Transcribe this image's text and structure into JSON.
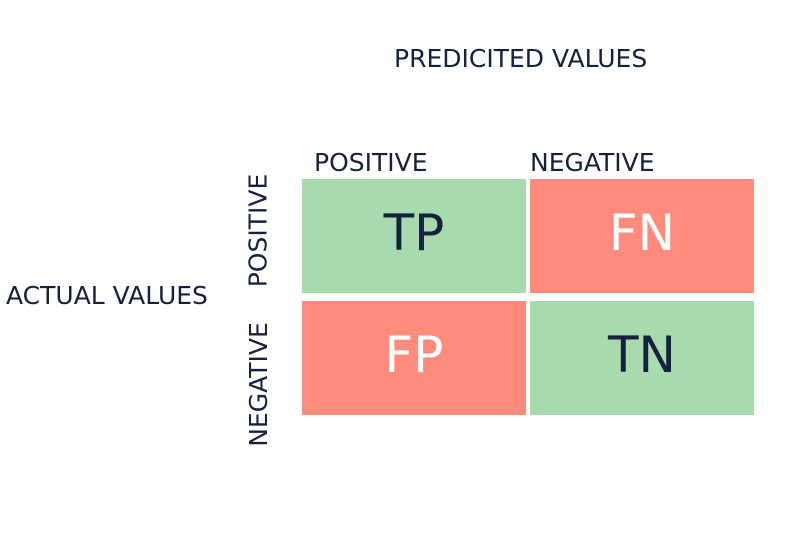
{
  "predicted_title": "PREDICITED VALUES",
  "actual_title": "ACTUAL VALUES",
  "columns": [
    "POSITIVE",
    "NEGATIVE"
  ],
  "rows": [
    "POSITIVE",
    "NEGATIVE"
  ],
  "cells": [
    {
      "label": "TP",
      "color": "#a7dbad"
    },
    {
      "label": "FN",
      "color": "#fe8b7c"
    },
    {
      "label": "FP",
      "color": "#fe8b7c"
    },
    {
      "label": "TN",
      "color": "#a7dbad"
    }
  ],
  "colors": {
    "text": "#16213e",
    "correct": "#a7dbad",
    "error": "#fe8b7c"
  }
}
